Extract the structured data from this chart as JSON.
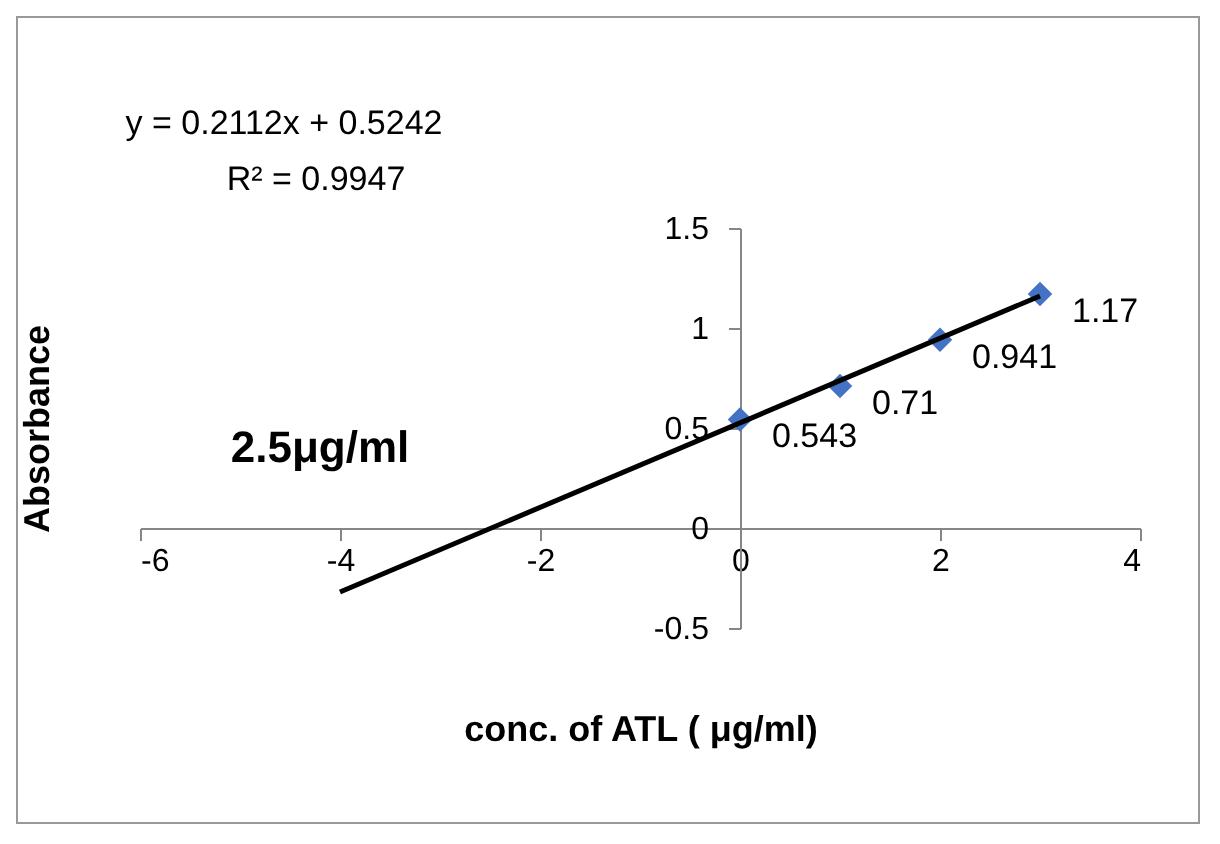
{
  "chart_data": {
    "type": "scatter",
    "xlabel": "conc. of ATL ( μg/ml)",
    "ylabel": "Absorbance",
    "annotations": [
      "y = 0.2112x + 0.5242",
      "R² = 0.9947",
      "2.5μg/ml"
    ],
    "xlim": [
      -6,
      4
    ],
    "xticks": [
      -6,
      -4,
      -2,
      0,
      2,
      4
    ],
    "ylim": [
      -0.5,
      1.5
    ],
    "yticks": [
      -0.5,
      0,
      0.5,
      1,
      1.5
    ],
    "marker": "diamond",
    "series": [
      {
        "color": "#4472c4",
        "x": [
          0,
          1,
          2,
          3
        ],
        "values": [
          0.543,
          0.71,
          0.941,
          1.17
        ],
        "value_labels": [
          "0.543",
          "0.71",
          "0.941",
          "1.17"
        ]
      },
      {
        "type": "line",
        "color": "#000000",
        "x": [
          -4,
          3
        ],
        "values": [
          -0.32,
          1.16
        ],
        "line_style": "solid",
        "marker": "none"
      }
    ]
  }
}
